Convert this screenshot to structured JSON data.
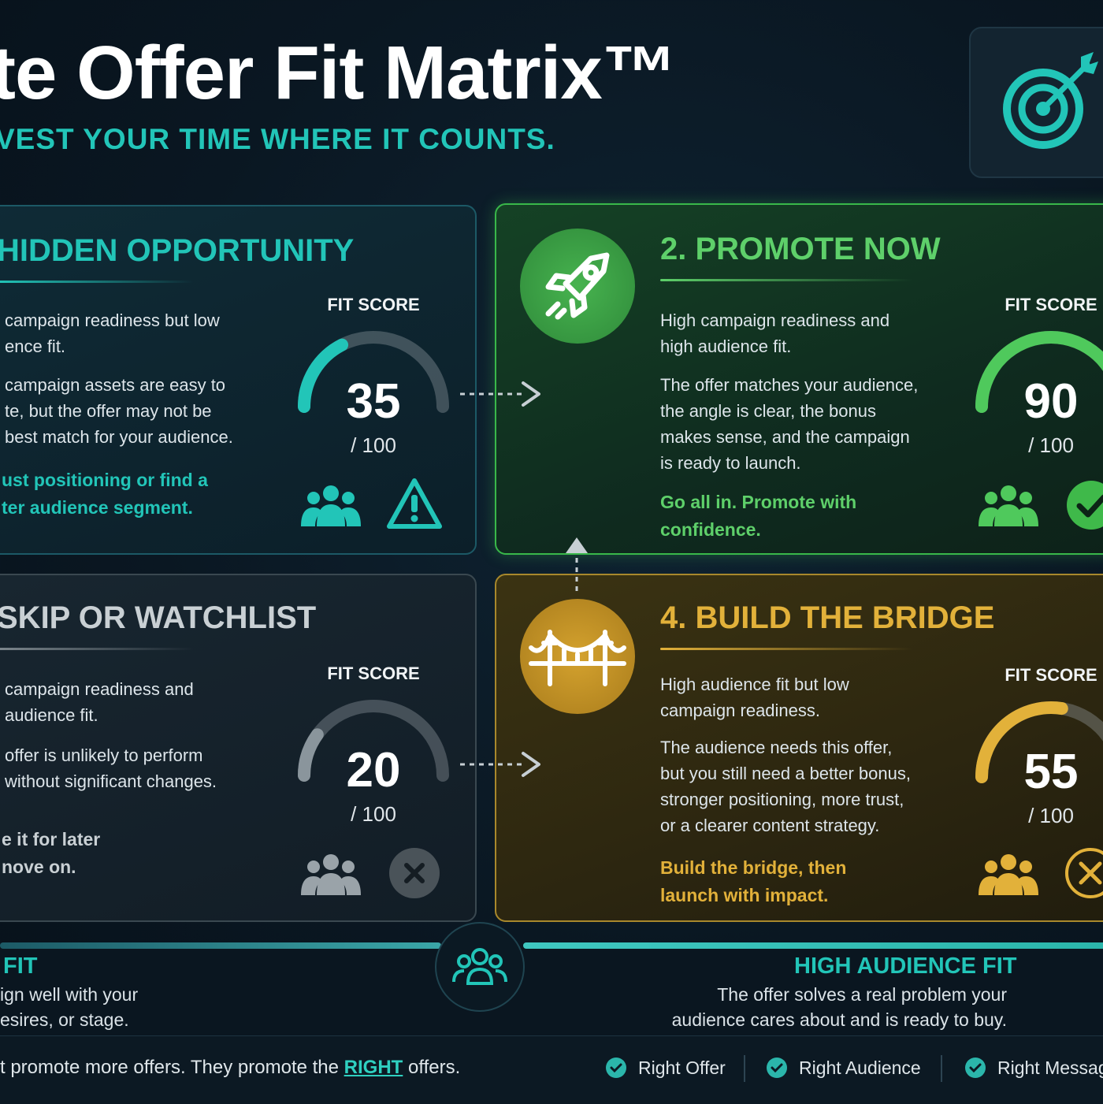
{
  "header": {
    "title": "te Offer Fit Matrix™",
    "subtitle": "VEST YOUR TIME WHERE IT COUNTS.",
    "logo_icon": "target-arrow-icon"
  },
  "colors": {
    "teal": "#22c5b8",
    "green": "#3fc24d",
    "gold": "#e2b13a",
    "gray": "#8a959c"
  },
  "quadrants": [
    {
      "title": "HIDDEN OPPORTUNITY",
      "body1": [
        "campaign readiness but low",
        "ence fit."
      ],
      "body2": [
        "campaign assets are easy to",
        "te, but the offer may not be",
        "best match for your audience."
      ],
      "cta": [
        "ust positioning or find a",
        "ter audience segment."
      ],
      "fit_label": "FIT SCORE",
      "score": "35",
      "score_value": 35,
      "denominator": "/ 100",
      "icons": [
        "audience-icon",
        "warning-icon"
      ]
    },
    {
      "title": "2. PROMOTE NOW",
      "body1": [
        "High campaign readiness and",
        "high audience fit."
      ],
      "body2": [
        "The offer matches your audience,",
        "the angle is clear, the bonus",
        "makes sense, and the campaign",
        "is ready to launch."
      ],
      "cta": [
        "Go all in. Promote with",
        "confidence."
      ],
      "fit_label": "FIT SCORE",
      "score": "90",
      "score_value": 90,
      "denominator": "/ 100",
      "icons": [
        "rocket-icon",
        "audience-icon",
        "check-icon"
      ]
    },
    {
      "title": "SKIP OR WATCHLIST",
      "body1": [
        "campaign readiness and",
        "audience fit."
      ],
      "body2": [
        "offer is unlikely to perform",
        "without significant changes."
      ],
      "cta": [
        "e it for later",
        "nove on."
      ],
      "fit_label": "FIT SCORE",
      "score": "20",
      "score_value": 20,
      "denominator": "/ 100",
      "icons": [
        "audience-icon",
        "close-icon"
      ]
    },
    {
      "title": "4. BUILD THE BRIDGE",
      "body1": [
        "High audience fit but low",
        "campaign readiness."
      ],
      "body2": [
        "The audience needs this offer,",
        "but you still need a better bonus,",
        "stronger positioning, more trust,",
        "or a clearer content strategy."
      ],
      "cta": [
        "Build the bridge, then",
        "launch with impact."
      ],
      "fit_label": "FIT SCORE",
      "score": "55",
      "score_value": 55,
      "denominator": "/ 100",
      "icons": [
        "bridge-icon",
        "audience-icon",
        "tools-icon"
      ]
    }
  ],
  "axis": {
    "left_label": "FIT",
    "left_text": [
      "ign well with your",
      "esires, or stage."
    ],
    "right_label": "HIGH AUDIENCE FIT",
    "right_text": [
      "The offer solves a real problem your",
      "audience cares about and is ready to buy."
    ]
  },
  "footer": {
    "text_before": "t promote more offers. They promote the ",
    "text_emphasis": "RIGHT",
    "text_after": " offers.",
    "checks": [
      "Right Offer",
      "Right Audience",
      "Right Messag"
    ]
  }
}
